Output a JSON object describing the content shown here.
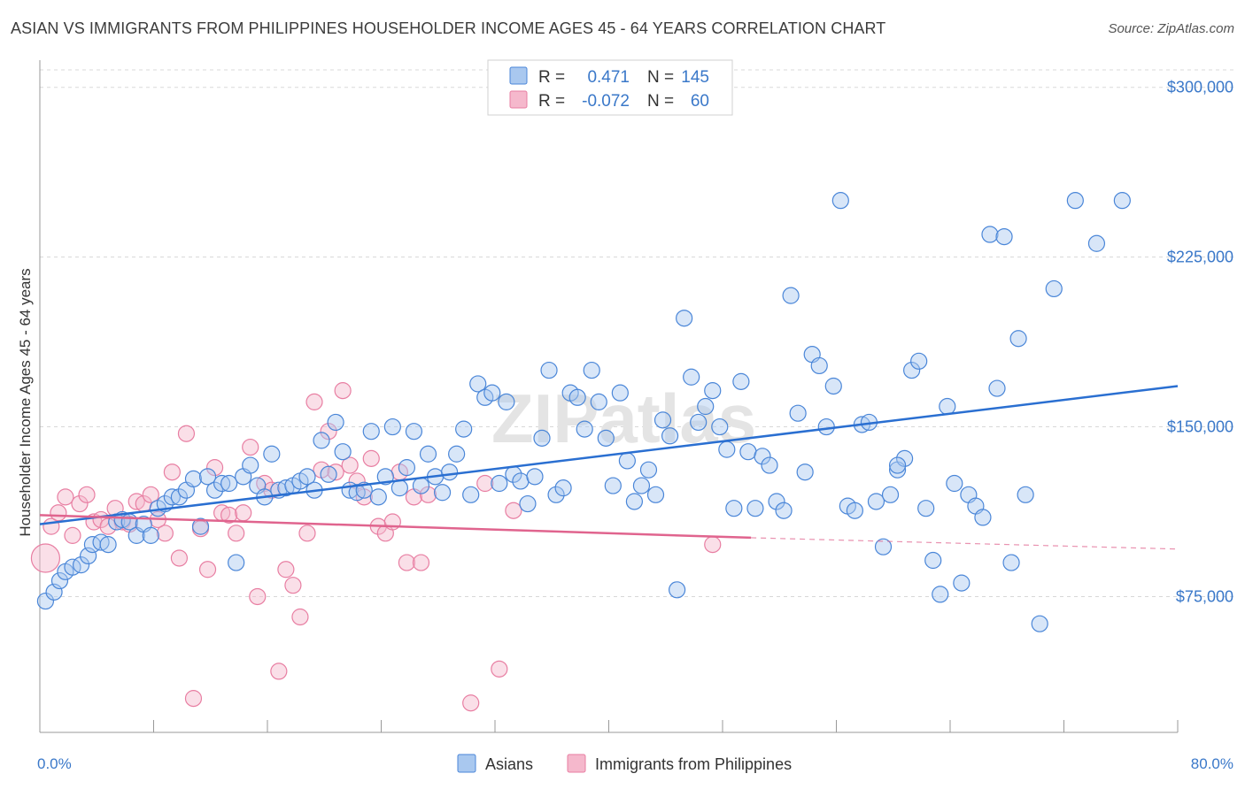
{
  "title": "ASIAN VS IMMIGRANTS FROM PHILIPPINES HOUSEHOLDER INCOME AGES 45 - 64 YEARS CORRELATION CHART",
  "source": "Source: ZipAtlas.com",
  "watermark": "ZIPatlas",
  "colors": {
    "asians_fill": "#a9c8ef",
    "asians_stroke": "#4a86d8",
    "asians_line": "#2a6fd1",
    "phil_fill": "#f5b8cc",
    "phil_stroke": "#e87ea2",
    "phil_line": "#e0648e",
    "tick_text": "#3a78c9",
    "grid": "#d8d8d8"
  },
  "legend": {
    "rows": [
      {
        "r_label": "R =",
        "r_value": "0.471",
        "n_label": "N =",
        "n_value": "145"
      },
      {
        "r_label": "R =",
        "r_value": "-0.072",
        "n_label": "N =",
        "n_value": "60"
      }
    ]
  },
  "chart_data": {
    "type": "scatter",
    "title": "ASIAN VS IMMIGRANTS FROM PHILIPPINES HOUSEHOLDER INCOME AGES 45 - 64 YEARS CORRELATION CHART",
    "xlabel": "",
    "ylabel": "Householder Income Ages 45 - 64 years",
    "xlim": [
      0,
      80
    ],
    "ylim": [
      15000,
      312000
    ],
    "x_tick_labels": [
      {
        "value": 0,
        "label": "0.0%"
      },
      {
        "value": 80,
        "label": "80.0%"
      }
    ],
    "y_ticks": [
      {
        "value": 75000,
        "label": "$75,000"
      },
      {
        "value": 150000,
        "label": "$150,000"
      },
      {
        "value": 225000,
        "label": "$225,000"
      },
      {
        "value": 300000,
        "label": "$300,000"
      }
    ],
    "grid": true,
    "legend_position": "top-center",
    "series": [
      {
        "name": "Asians",
        "r": 0.471,
        "n": 145,
        "trend": {
          "x0": 0,
          "y0": 107000,
          "x1": 80,
          "y1": 168000
        },
        "points": [
          [
            0.4,
            73000
          ],
          [
            1.0,
            77000
          ],
          [
            1.4,
            82000
          ],
          [
            1.8,
            86000
          ],
          [
            2.3,
            88000
          ],
          [
            2.9,
            89000
          ],
          [
            3.4,
            93000
          ],
          [
            3.7,
            98000
          ],
          [
            4.3,
            99000
          ],
          [
            4.8,
            98000
          ],
          [
            5.4,
            108000
          ],
          [
            5.8,
            109000
          ],
          [
            6.3,
            108000
          ],
          [
            6.8,
            102000
          ],
          [
            7.3,
            107000
          ],
          [
            7.8,
            102000
          ],
          [
            8.3,
            114000
          ],
          [
            8.8,
            116000
          ],
          [
            9.3,
            119000
          ],
          [
            9.8,
            119000
          ],
          [
            10.3,
            122000
          ],
          [
            10.8,
            127000
          ],
          [
            11.3,
            106000
          ],
          [
            11.8,
            128000
          ],
          [
            12.3,
            122000
          ],
          [
            12.8,
            125000
          ],
          [
            13.3,
            125000
          ],
          [
            13.8,
            90000
          ],
          [
            14.3,
            128000
          ],
          [
            14.8,
            133000
          ],
          [
            15.3,
            124000
          ],
          [
            15.8,
            119000
          ],
          [
            16.3,
            138000
          ],
          [
            16.8,
            122000
          ],
          [
            17.3,
            123000
          ],
          [
            17.8,
            124000
          ],
          [
            18.3,
            126000
          ],
          [
            18.8,
            128000
          ],
          [
            19.3,
            122000
          ],
          [
            19.8,
            144000
          ],
          [
            20.3,
            129000
          ],
          [
            20.8,
            152000
          ],
          [
            21.3,
            139000
          ],
          [
            21.8,
            122000
          ],
          [
            22.3,
            121000
          ],
          [
            22.8,
            122000
          ],
          [
            23.3,
            148000
          ],
          [
            23.8,
            119000
          ],
          [
            24.3,
            128000
          ],
          [
            24.8,
            150000
          ],
          [
            25.3,
            123000
          ],
          [
            25.8,
            132000
          ],
          [
            26.3,
            148000
          ],
          [
            26.8,
            124000
          ],
          [
            27.3,
            138000
          ],
          [
            27.8,
            128000
          ],
          [
            28.3,
            121000
          ],
          [
            28.8,
            130000
          ],
          [
            29.3,
            138000
          ],
          [
            29.8,
            149000
          ],
          [
            30.3,
            120000
          ],
          [
            30.8,
            169000
          ],
          [
            31.3,
            163000
          ],
          [
            31.8,
            165000
          ],
          [
            32.3,
            125000
          ],
          [
            32.8,
            161000
          ],
          [
            33.3,
            129000
          ],
          [
            33.8,
            126000
          ],
          [
            34.3,
            116000
          ],
          [
            34.8,
            128000
          ],
          [
            35.3,
            145000
          ],
          [
            35.8,
            175000
          ],
          [
            36.3,
            120000
          ],
          [
            36.8,
            123000
          ],
          [
            37.3,
            165000
          ],
          [
            37.8,
            163000
          ],
          [
            38.3,
            149000
          ],
          [
            38.8,
            175000
          ],
          [
            39.3,
            161000
          ],
          [
            39.8,
            145000
          ],
          [
            40.3,
            124000
          ],
          [
            40.8,
            165000
          ],
          [
            41.3,
            135000
          ],
          [
            41.8,
            117000
          ],
          [
            42.3,
            124000
          ],
          [
            42.8,
            131000
          ],
          [
            43.3,
            120000
          ],
          [
            43.8,
            153000
          ],
          [
            44.3,
            146000
          ],
          [
            44.8,
            78000
          ],
          [
            45.3,
            198000
          ],
          [
            45.8,
            172000
          ],
          [
            46.3,
            152000
          ],
          [
            46.8,
            159000
          ],
          [
            47.3,
            166000
          ],
          [
            47.8,
            150000
          ],
          [
            48.3,
            140000
          ],
          [
            48.8,
            114000
          ],
          [
            49.3,
            170000
          ],
          [
            49.8,
            139000
          ],
          [
            50.3,
            114000
          ],
          [
            50.8,
            137000
          ],
          [
            51.3,
            133000
          ],
          [
            51.8,
            117000
          ],
          [
            52.3,
            113000
          ],
          [
            52.8,
            208000
          ],
          [
            53.3,
            156000
          ],
          [
            53.8,
            130000
          ],
          [
            54.3,
            182000
          ],
          [
            54.8,
            177000
          ],
          [
            55.3,
            150000
          ],
          [
            55.8,
            168000
          ],
          [
            56.3,
            250000
          ],
          [
            56.8,
            115000
          ],
          [
            57.3,
            113000
          ],
          [
            57.8,
            151000
          ],
          [
            58.3,
            152000
          ],
          [
            58.8,
            117000
          ],
          [
            59.3,
            97000
          ],
          [
            59.8,
            120000
          ],
          [
            60.3,
            131000
          ],
          [
            60.8,
            136000
          ],
          [
            61.3,
            175000
          ],
          [
            61.8,
            179000
          ],
          [
            62.3,
            114000
          ],
          [
            62.8,
            91000
          ],
          [
            63.3,
            76000
          ],
          [
            63.8,
            159000
          ],
          [
            64.3,
            125000
          ],
          [
            64.8,
            81000
          ],
          [
            65.3,
            120000
          ],
          [
            65.8,
            115000
          ],
          [
            66.3,
            110000
          ],
          [
            66.8,
            235000
          ],
          [
            67.3,
            167000
          ],
          [
            67.8,
            234000
          ],
          [
            68.3,
            90000
          ],
          [
            68.8,
            189000
          ],
          [
            69.3,
            120000
          ],
          [
            70.3,
            63000
          ],
          [
            71.3,
            211000
          ],
          [
            72.8,
            250000
          ],
          [
            74.3,
            231000
          ],
          [
            76.1,
            250000
          ],
          [
            60.3,
            133000
          ]
        ]
      },
      {
        "name": "Immigrants from Philippines",
        "r": -0.072,
        "n": 60,
        "trend": {
          "x0": 0,
          "y0": 111000,
          "x1": 50,
          "y1": 101000,
          "dash_x1": 80,
          "dash_y1": 96000
        },
        "points": [
          [
            0.4,
            92000
          ],
          [
            0.8,
            106000
          ],
          [
            1.3,
            112000
          ],
          [
            1.8,
            119000
          ],
          [
            2.3,
            102000
          ],
          [
            2.8,
            116000
          ],
          [
            3.3,
            120000
          ],
          [
            3.8,
            108000
          ],
          [
            4.3,
            109000
          ],
          [
            4.8,
            106000
          ],
          [
            5.3,
            114000
          ],
          [
            5.8,
            108000
          ],
          [
            6.3,
            107000
          ],
          [
            6.8,
            117000
          ],
          [
            7.3,
            116000
          ],
          [
            7.8,
            120000
          ],
          [
            8.3,
            109000
          ],
          [
            8.8,
            103000
          ],
          [
            9.3,
            130000
          ],
          [
            9.8,
            92000
          ],
          [
            10.3,
            147000
          ],
          [
            10.8,
            30000
          ],
          [
            11.3,
            105000
          ],
          [
            11.8,
            87000
          ],
          [
            12.3,
            132000
          ],
          [
            12.8,
            112000
          ],
          [
            13.3,
            111000
          ],
          [
            13.8,
            103000
          ],
          [
            14.3,
            112000
          ],
          [
            14.8,
            141000
          ],
          [
            15.3,
            75000
          ],
          [
            15.8,
            125000
          ],
          [
            16.3,
            122000
          ],
          [
            16.8,
            42000
          ],
          [
            17.3,
            87000
          ],
          [
            17.8,
            80000
          ],
          [
            18.3,
            66000
          ],
          [
            18.8,
            103000
          ],
          [
            19.3,
            161000
          ],
          [
            19.8,
            131000
          ],
          [
            20.3,
            148000
          ],
          [
            20.8,
            130000
          ],
          [
            21.3,
            166000
          ],
          [
            21.8,
            133000
          ],
          [
            22.3,
            126000
          ],
          [
            22.8,
            119000
          ],
          [
            23.3,
            136000
          ],
          [
            23.8,
            106000
          ],
          [
            24.3,
            103000
          ],
          [
            24.8,
            108000
          ],
          [
            25.3,
            130000
          ],
          [
            25.8,
            90000
          ],
          [
            26.3,
            119000
          ],
          [
            26.8,
            90000
          ],
          [
            27.3,
            120000
          ],
          [
            30.3,
            28000
          ],
          [
            31.3,
            125000
          ],
          [
            32.3,
            43000
          ],
          [
            33.3,
            113000
          ],
          [
            47.3,
            98000
          ]
        ]
      }
    ]
  }
}
